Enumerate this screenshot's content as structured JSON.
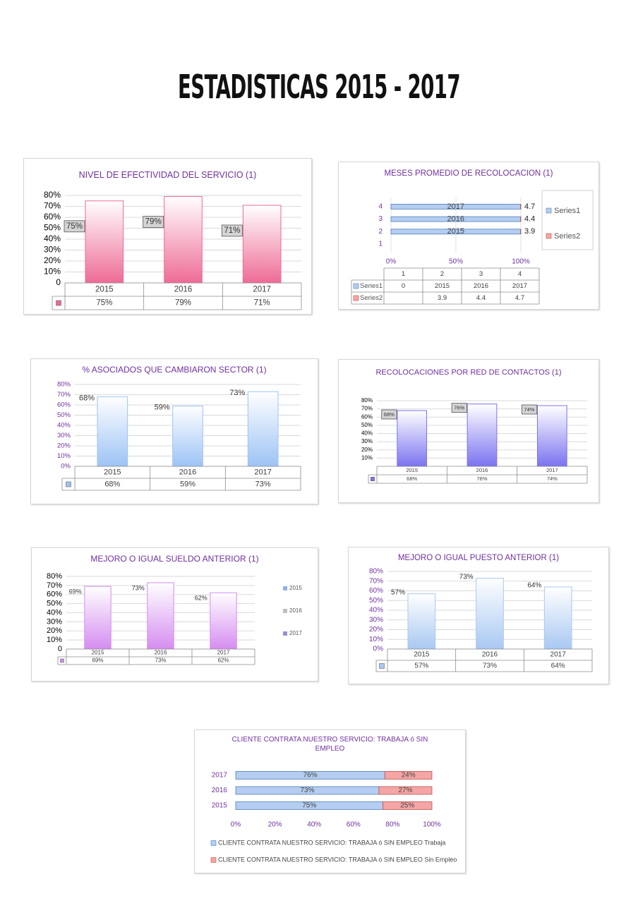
{
  "title": "ESTADISTICAS 2015 - 2017",
  "chart_data": [
    {
      "type": "bar",
      "title": "NIVEL DE EFECTIVIDAD DEL SERVICIO (1)",
      "categories": [
        "2015",
        "2016",
        "2017"
      ],
      "values": [
        75,
        79,
        71
      ],
      "value_labels": [
        "75%",
        "79%",
        "71%"
      ],
      "color": "#ee6b95",
      "ylim": [
        0,
        80
      ],
      "yticks": [
        0,
        {
          "value": 10,
          "label": "10%"
        },
        {
          "value": 20,
          "label": "20%"
        },
        {
          "value": 30,
          "label": "30%"
        },
        {
          "value": 40,
          "label": "40%"
        },
        {
          "value": 50,
          "label": "50%"
        },
        {
          "value": 60,
          "label": "60%"
        },
        {
          "value": 70,
          "label": "70%"
        },
        {
          "value": 80,
          "label": "80%"
        }
      ],
      "grid": true
    },
    {
      "type": "bar",
      "orientation": "horizontal",
      "stacked": "percent",
      "title": "MESES PROMEDIO DE RECOLOCACION (1)",
      "categories": [
        "1",
        "2",
        "3",
        "4"
      ],
      "series": [
        {
          "name": "Series1",
          "color": "#b4cdf0",
          "values": [
            0,
            2015,
            2016,
            2017
          ]
        },
        {
          "name": "Series2",
          "color": "#f5a5a5",
          "values": [
            null,
            3.9,
            4.4,
            4.7
          ]
        }
      ],
      "xlim": [
        0,
        100
      ],
      "xticks": [
        {
          "value": 0,
          "label": "0%"
        },
        {
          "value": 50,
          "label": "50%"
        },
        {
          "value": 100,
          "label": "100%"
        }
      ],
      "grid": true,
      "legend": "right"
    },
    {
      "type": "bar",
      "title": "% ASOCIADOS QUE CAMBIARON SECTOR (1)",
      "categories": [
        "2015",
        "2016",
        "2017"
      ],
      "values": [
        68,
        59,
        73
      ],
      "value_labels": [
        "68%",
        "59%",
        "73%"
      ],
      "color": "#9dc3f5",
      "ylim": [
        0,
        80
      ],
      "yticks": [
        {
          "value": 0,
          "label": "0%"
        },
        {
          "value": 10,
          "label": "10%"
        },
        {
          "value": 20,
          "label": "20%"
        },
        {
          "value": 30,
          "label": "30%"
        },
        {
          "value": 40,
          "label": "40%"
        },
        {
          "value": 50,
          "label": "50%"
        },
        {
          "value": 60,
          "label": "60%"
        },
        {
          "value": 70,
          "label": "70%"
        },
        {
          "value": 80,
          "label": "80%"
        }
      ],
      "grid": true
    },
    {
      "type": "bar",
      "title": "RECOLOCACIONES POR RED DE CONTACTOS (1)",
      "categories": [
        "2015",
        "2016",
        "2017"
      ],
      "values": [
        68,
        76,
        74
      ],
      "value_labels": [
        "68%",
        "76%",
        "74%"
      ],
      "color": "#7b73f0",
      "ylim": [
        0,
        80
      ],
      "yticks": [
        {
          "value": 10,
          "label": "10%"
        },
        {
          "value": 20,
          "label": "20%"
        },
        {
          "value": 30,
          "label": "30%"
        },
        {
          "value": 40,
          "label": "40%"
        },
        {
          "value": 50,
          "label": "50%"
        },
        {
          "value": 60,
          "label": "60%"
        },
        {
          "value": 70,
          "label": "70%"
        },
        {
          "value": 80,
          "label": "80%"
        }
      ],
      "grid": true
    },
    {
      "type": "bar",
      "title": "MEJORO O IGUAL SUELDO ANTERIOR (1)",
      "categories": [
        "2015",
        "2016",
        "2017"
      ],
      "values": [
        69,
        73,
        62
      ],
      "value_labels": [
        "69%",
        "73%",
        "62%"
      ],
      "color": "#d58df0",
      "ylim": [
        0,
        80
      ],
      "yticks": [
        0,
        {
          "value": 10,
          "label": "10%"
        },
        {
          "value": 20,
          "label": "20%"
        },
        {
          "value": 30,
          "label": "30%"
        },
        {
          "value": 40,
          "label": "40%"
        },
        {
          "value": 50,
          "label": "50%"
        },
        {
          "value": 60,
          "label": "60%"
        },
        {
          "value": 70,
          "label": "70%"
        },
        {
          "value": 80,
          "label": "80%"
        }
      ],
      "grid": true,
      "legend": "right",
      "legend_colors": [
        "#8eb4e3",
        "#bfbfbf",
        "#9b8fd8"
      ]
    },
    {
      "type": "bar",
      "title": "MEJORO O IGUAL PUESTO ANTERIOR (1)",
      "categories": [
        "2015",
        "2016",
        "2017"
      ],
      "values": [
        57,
        73,
        64
      ],
      "value_labels": [
        "57%",
        "73%",
        "64%"
      ],
      "color": "#a9c8f2",
      "ylim": [
        0,
        80
      ],
      "yticks": [
        {
          "value": 0,
          "label": "0%"
        },
        {
          "value": 10,
          "label": "10%"
        },
        {
          "value": 20,
          "label": "20%"
        },
        {
          "value": 30,
          "label": "30%"
        },
        {
          "value": 40,
          "label": "40%"
        },
        {
          "value": 50,
          "label": "50%"
        },
        {
          "value": 60,
          "label": "60%"
        },
        {
          "value": 70,
          "label": "70%"
        },
        {
          "value": 80,
          "label": "80%"
        }
      ],
      "grid": true
    },
    {
      "type": "bar",
      "orientation": "horizontal",
      "stacked": "percent",
      "title": "CLIENTE CONTRATA NUESTRO SERVICIO: TRABAJA ó SIN EMPLEO",
      "categories": [
        "2015",
        "2016",
        "2017"
      ],
      "series": [
        {
          "name": "CLIENTE CONTRATA NUESTRO SERVICIO: TRABAJA ó SIN EMPLEO Trabaja",
          "color": "#b4cdf0",
          "values": [
            75,
            73,
            76
          ],
          "value_labels": [
            "75%",
            "73%",
            "76%"
          ]
        },
        {
          "name": "CLIENTE CONTRATA NUESTRO SERVICIO: TRABAJA ó SIN EMPLEO Sin Empleo",
          "color": "#f5a5a5",
          "values": [
            25,
            27,
            24
          ],
          "value_labels": [
            "25%",
            "27%",
            "24%"
          ]
        }
      ],
      "xlim": [
        0,
        100
      ],
      "xticks": [
        {
          "value": 0,
          "label": "0%"
        },
        {
          "value": 20,
          "label": "20%"
        },
        {
          "value": 40,
          "label": "40%"
        },
        {
          "value": 60,
          "label": "60%"
        },
        {
          "value": 80,
          "label": "80%"
        },
        {
          "value": 100,
          "label": "100%"
        }
      ],
      "grid": false,
      "legend": "bottom"
    }
  ]
}
